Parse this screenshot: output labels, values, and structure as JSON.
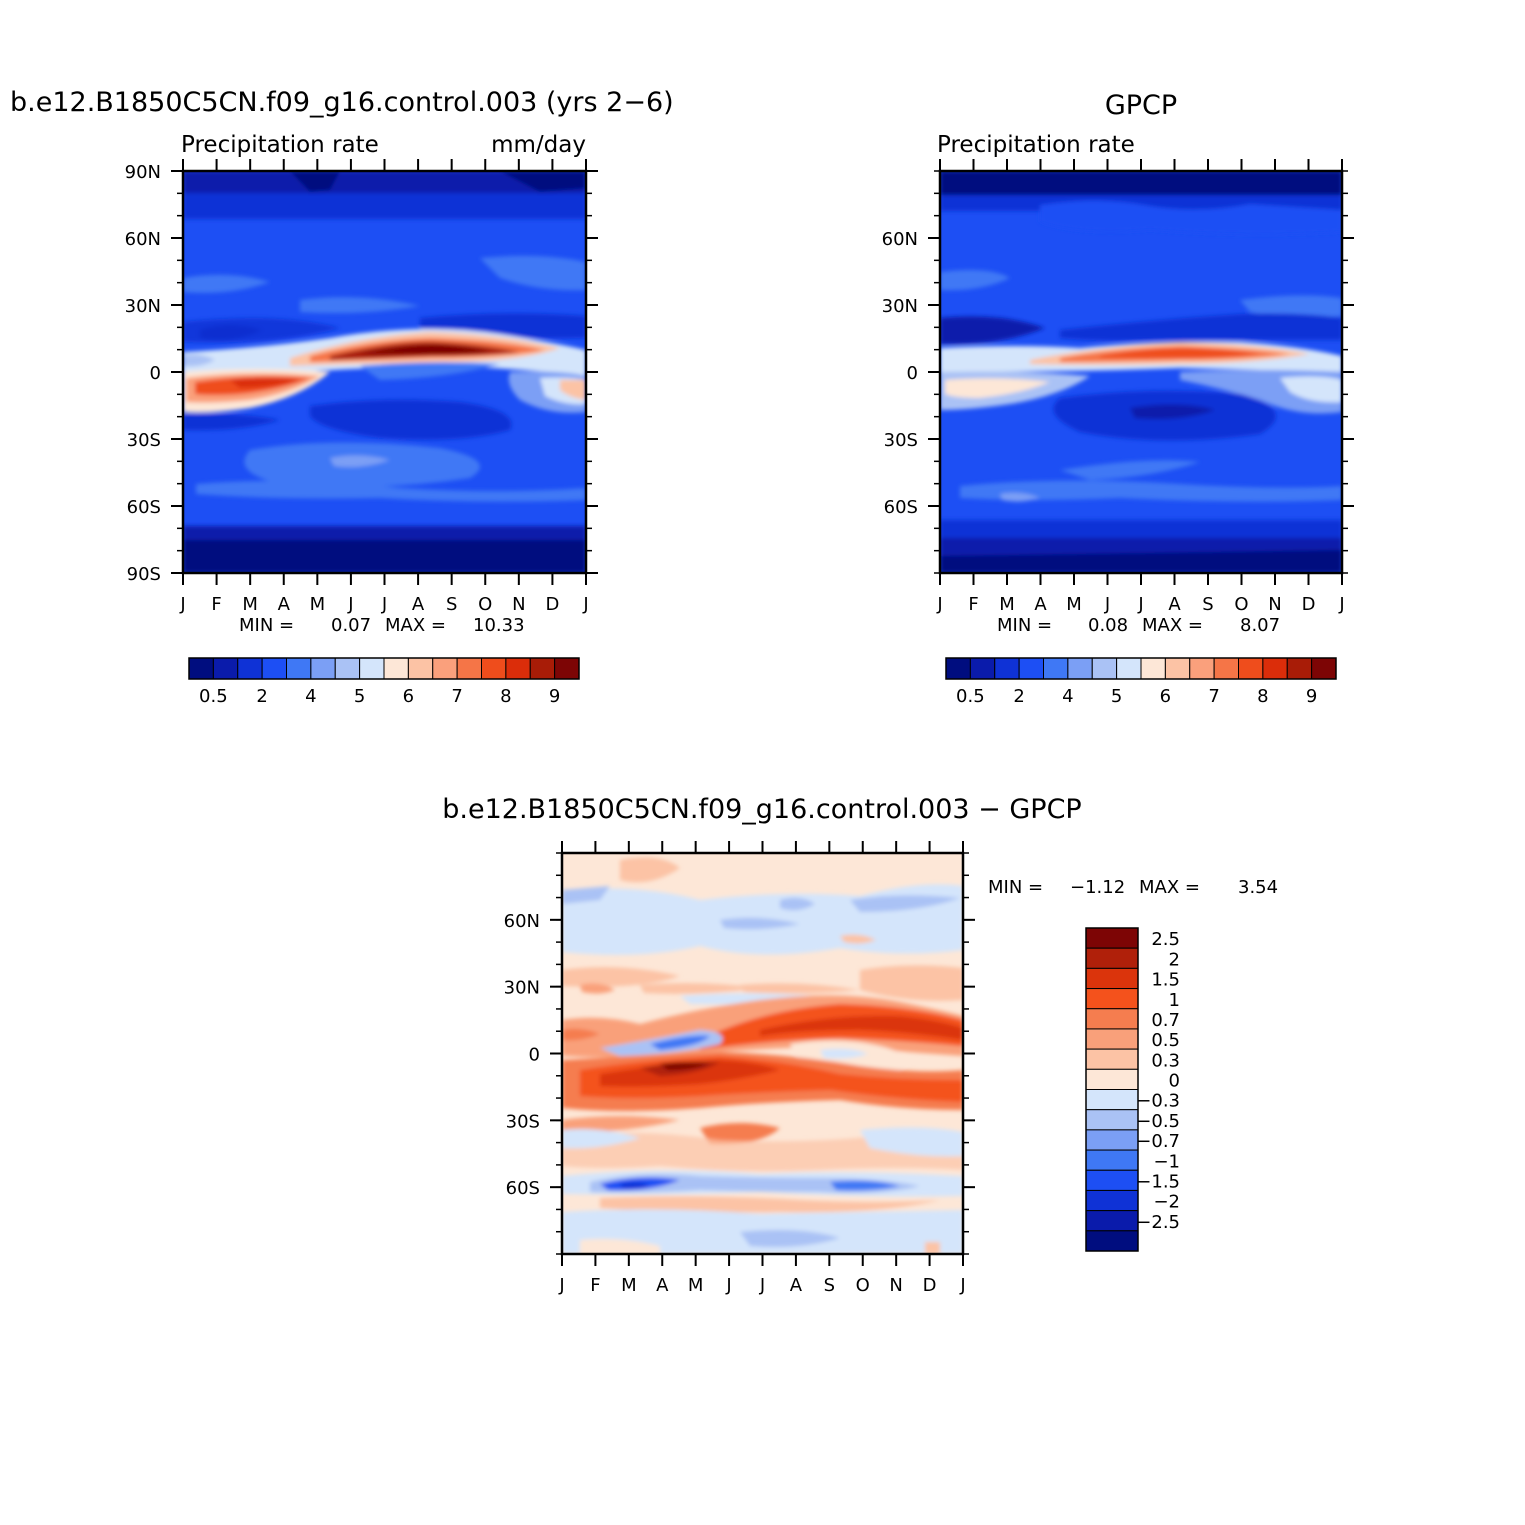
{
  "chart_data": [
    {
      "type": "heatmap",
      "title": "b.e12.B1850C5CN.f09_g16.control.003 (yrs 2−6)",
      "left_label": "Precipitation rate",
      "right_label": "mm/day",
      "x": [
        "J",
        "F",
        "M",
        "A",
        "M",
        "J",
        "J",
        "A",
        "S",
        "O",
        "N",
        "D",
        "J"
      ],
      "y_ticks": [
        "90N",
        "60N",
        "30N",
        "0",
        "30S",
        "60S",
        "90S"
      ],
      "ylim": [
        -90,
        90
      ],
      "min_label": "MIN =",
      "min_value": "0.07",
      "max_label": "MAX =",
      "max_value": "10.33",
      "colorbar": {
        "labels": [
          "0.5",
          "2",
          "4",
          "5",
          "6",
          "7",
          "8",
          "9"
        ],
        "colors": [
          "#000d7f",
          "#0a1bab",
          "#0f32d6",
          "#1d4ff4",
          "#3f78f5",
          "#7b9ff5",
          "#aac2f5",
          "#d4e5fb",
          "#fde7d7",
          "#fcc3a5",
          "#faa07c",
          "#f57547",
          "#ef4d1c",
          "#db2d0a",
          "#a81c07",
          "#7d0505"
        ]
      }
    },
    {
      "type": "heatmap",
      "title": "GPCP",
      "left_label": "Precipitation rate",
      "right_label": "",
      "x": [
        "J",
        "F",
        "M",
        "A",
        "M",
        "J",
        "J",
        "A",
        "S",
        "O",
        "N",
        "D",
        "J"
      ],
      "y_ticks": [
        "60N",
        "30N",
        "0",
        "30S",
        "60S"
      ],
      "ylim": [
        -90,
        90
      ],
      "min_label": "MIN =",
      "min_value": "0.08",
      "max_label": "MAX =",
      "max_value": "8.07",
      "colorbar": {
        "labels": [
          "0.5",
          "2",
          "4",
          "5",
          "6",
          "7",
          "8",
          "9"
        ],
        "colors": [
          "#000d7f",
          "#0a1bab",
          "#0f32d6",
          "#1d4ff4",
          "#3f78f5",
          "#7b9ff5",
          "#aac2f5",
          "#d4e5fb",
          "#fde7d7",
          "#fcc3a5",
          "#faa07c",
          "#f57547",
          "#ef4d1c",
          "#db2d0a",
          "#a81c07",
          "#7d0505"
        ]
      }
    },
    {
      "type": "heatmap",
      "title": "b.e12.B1850C5CN.f09_g16.control.003 − GPCP",
      "x": [
        "J",
        "F",
        "M",
        "A",
        "M",
        "J",
        "J",
        "A",
        "S",
        "O",
        "N",
        "D",
        "J"
      ],
      "y_ticks": [
        "60N",
        "30N",
        "0",
        "30S",
        "60S"
      ],
      "ylim": [
        -90,
        90
      ],
      "min_label": "MIN =",
      "min_value": "−1.12",
      "max_label": "MAX =",
      "max_value": "3.54",
      "colorbar": {
        "labels": [
          "2.5",
          "2",
          "1.5",
          "1",
          "0.7",
          "0.5",
          "0.3",
          "0",
          "−0.3",
          "−0.5",
          "−0.7",
          "−1",
          "−1.5",
          "−2",
          "−2.5"
        ],
        "colors": [
          "#7d0505",
          "#b0200a",
          "#db340c",
          "#f4521c",
          "#f57d4f",
          "#f9a07a",
          "#fcc3a5",
          "#fde7d7",
          "#d4e5fb",
          "#aac2f5",
          "#7b9ff5",
          "#3f78f5",
          "#1d4ff4",
          "#0f32d6",
          "#0a1bab",
          "#000d7f"
        ]
      }
    }
  ]
}
